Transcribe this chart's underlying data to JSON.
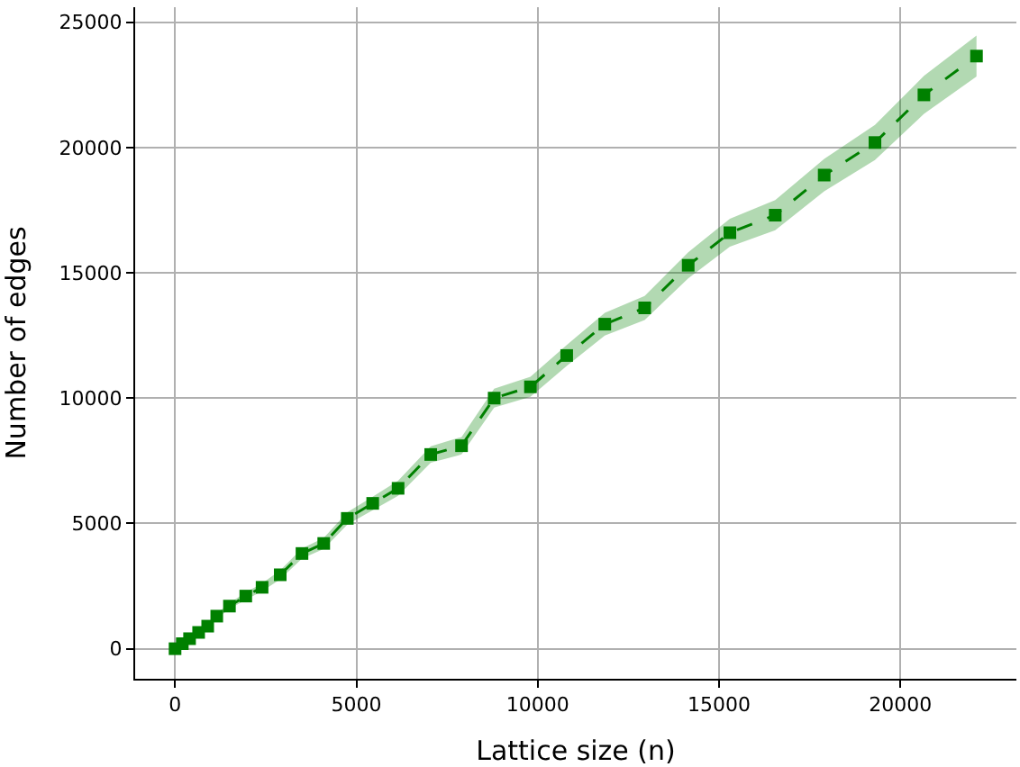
{
  "chart_data": {
    "type": "line",
    "xlabel": "Lattice size (n)",
    "ylabel": "Number of edges",
    "xlim": [
      -1100,
      23200
    ],
    "ylim": [
      -1200,
      25600
    ],
    "xticks": [
      0,
      5000,
      10000,
      15000,
      20000
    ],
    "yticks": [
      0,
      5000,
      10000,
      15000,
      20000,
      25000
    ],
    "grid": true,
    "marker": "square",
    "line_style": "dashed",
    "series": [
      {
        "color": "#008000",
        "x": [
          0,
          200,
          400,
          650,
          900,
          1150,
          1500,
          1950,
          2400,
          2900,
          3500,
          4100,
          4750,
          5450,
          6150,
          7050,
          7900,
          8800,
          9800,
          10800,
          11850,
          12950,
          14150,
          15300,
          16550,
          17900,
          19300,
          20650,
          22100
        ],
        "values": [
          0,
          200,
          400,
          650,
          900,
          1300,
          1700,
          2100,
          2450,
          2950,
          3800,
          4200,
          5200,
          5800,
          6400,
          7750,
          8100,
          10000,
          10450,
          11700,
          12950,
          13600,
          15300,
          16600,
          17300,
          18900,
          20200,
          22100,
          23650
        ],
        "lower": [
          0,
          170,
          350,
          580,
          820,
          1200,
          1580,
          1950,
          2290,
          2770,
          3600,
          3980,
          4950,
          5530,
          6100,
          7420,
          7750,
          9620,
          10050,
          11280,
          12500,
          13120,
          14780,
          16040,
          16700,
          18250,
          19500,
          21340,
          22830
        ],
        "upper": [
          0,
          230,
          450,
          720,
          980,
          1400,
          1820,
          2250,
          2610,
          3130,
          4000,
          4420,
          5450,
          6070,
          6700,
          8080,
          8450,
          10380,
          10850,
          12120,
          13400,
          14080,
          15820,
          17160,
          17900,
          19550,
          20900,
          22860,
          24470
        ]
      }
    ]
  }
}
